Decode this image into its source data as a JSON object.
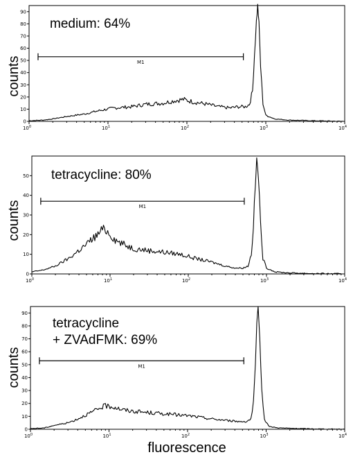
{
  "chart_data": [
    {
      "type": "line",
      "title_lines": [
        "medium: 64%"
      ],
      "xlabel": "",
      "ylabel": "counts",
      "xscale": "log",
      "xlim": [
        1,
        10000
      ],
      "ylim": [
        0,
        95
      ],
      "x_ticks": [
        {
          "base": "10",
          "exp": "0",
          "value": 1
        },
        {
          "base": "10",
          "exp": "1",
          "value": 10
        },
        {
          "base": "10",
          "exp": "2",
          "value": 100
        },
        {
          "base": "10",
          "exp": "3",
          "value": 1000
        },
        {
          "base": "10",
          "exp": "4",
          "value": 10000
        }
      ],
      "y_ticks": [
        0,
        10,
        20,
        30,
        40,
        50,
        60,
        70,
        80,
        90
      ],
      "gate": {
        "label": "M1",
        "x_start": 1.3,
        "x_end": 520,
        "y": 53
      },
      "series": [
        {
          "x": [
            1,
            1.5,
            2,
            3,
            5,
            8,
            12,
            20,
            30,
            50,
            70,
            90,
            120,
            180,
            250,
            350,
            450,
            550,
            620,
            680,
            720,
            760,
            790,
            820,
            860,
            920,
            1000,
            1300,
            2000,
            4000,
            10000
          ],
          "y": [
            0.5,
            1,
            2,
            4,
            6,
            9,
            11,
            12,
            14,
            15,
            17,
            18,
            16,
            14,
            12,
            11,
            12,
            12,
            14,
            25,
            55,
            82,
            95,
            80,
            45,
            15,
            5,
            2,
            1,
            0.5,
            0
          ]
        }
      ]
    },
    {
      "type": "line",
      "title_lines": [
        "tetracycline: 80%"
      ],
      "xlabel": "",
      "ylabel": "counts",
      "xscale": "log",
      "xlim": [
        1,
        10000
      ],
      "ylim": [
        0,
        60
      ],
      "x_ticks": [
        {
          "base": "10",
          "exp": "0",
          "value": 1
        },
        {
          "base": "10",
          "exp": "1",
          "value": 10
        },
        {
          "base": "10",
          "exp": "2",
          "value": 100
        },
        {
          "base": "10",
          "exp": "3",
          "value": 1000
        },
        {
          "base": "10",
          "exp": "4",
          "value": 10000
        }
      ],
      "y_ticks": [
        0,
        10,
        20,
        30,
        40,
        50
      ],
      "gate": {
        "label": "M1",
        "x_start": 1.3,
        "x_end": 520,
        "y": 37
      },
      "series": [
        {
          "x": [
            1,
            1.4,
            2,
            3,
            4,
            5,
            6,
            7,
            8,
            9,
            10,
            12,
            15,
            20,
            30,
            50,
            80,
            120,
            200,
            300,
            400,
            500,
            580,
            640,
            680,
            720,
            750,
            790,
            840,
            900,
            1000,
            1300,
            2000,
            4000,
            10000
          ],
          "y": [
            1,
            2,
            4,
            8,
            12,
            15,
            18,
            20,
            23,
            22,
            20,
            17,
            15,
            13,
            12,
            11,
            10,
            8,
            6,
            4,
            3,
            3,
            4,
            10,
            25,
            45,
            58,
            50,
            25,
            8,
            3,
            1,
            0.5,
            0.2,
            0
          ]
        }
      ]
    },
    {
      "type": "line",
      "title_lines": [
        "tetracycline",
        "+ ZVAdFMK: 69%"
      ],
      "xlabel": "fluorescence",
      "ylabel": "counts",
      "xscale": "log",
      "xlim": [
        1,
        10000
      ],
      "ylim": [
        0,
        95
      ],
      "x_ticks": [
        {
          "base": "10",
          "exp": "0",
          "value": 1
        },
        {
          "base": "10",
          "exp": "1",
          "value": 10
        },
        {
          "base": "10",
          "exp": "2",
          "value": 100
        },
        {
          "base": "10",
          "exp": "3",
          "value": 1000
        },
        {
          "base": "10",
          "exp": "4",
          "value": 10000
        }
      ],
      "y_ticks": [
        0,
        10,
        20,
        30,
        40,
        50,
        60,
        70,
        80,
        90
      ],
      "gate": {
        "label": "M1",
        "x_start": 1.3,
        "x_end": 520,
        "y": 53
      },
      "series": [
        {
          "x": [
            1,
            1.5,
            2,
            3,
            4,
            5,
            6,
            7,
            8,
            9,
            10,
            12,
            15,
            20,
            30,
            50,
            80,
            120,
            200,
            300,
            450,
            560,
            640,
            690,
            730,
            760,
            790,
            830,
            880,
            950,
            1100,
            1500,
            2500,
            5000,
            10000
          ],
          "y": [
            0.5,
            1,
            3,
            5,
            8,
            11,
            13,
            15,
            17,
            18,
            18,
            17,
            15,
            14,
            13,
            12,
            11,
            10,
            8,
            7,
            6,
            6,
            8,
            20,
            50,
            80,
            93,
            70,
            30,
            8,
            2,
            1,
            0.5,
            0.2,
            0
          ]
        }
      ]
    }
  ]
}
